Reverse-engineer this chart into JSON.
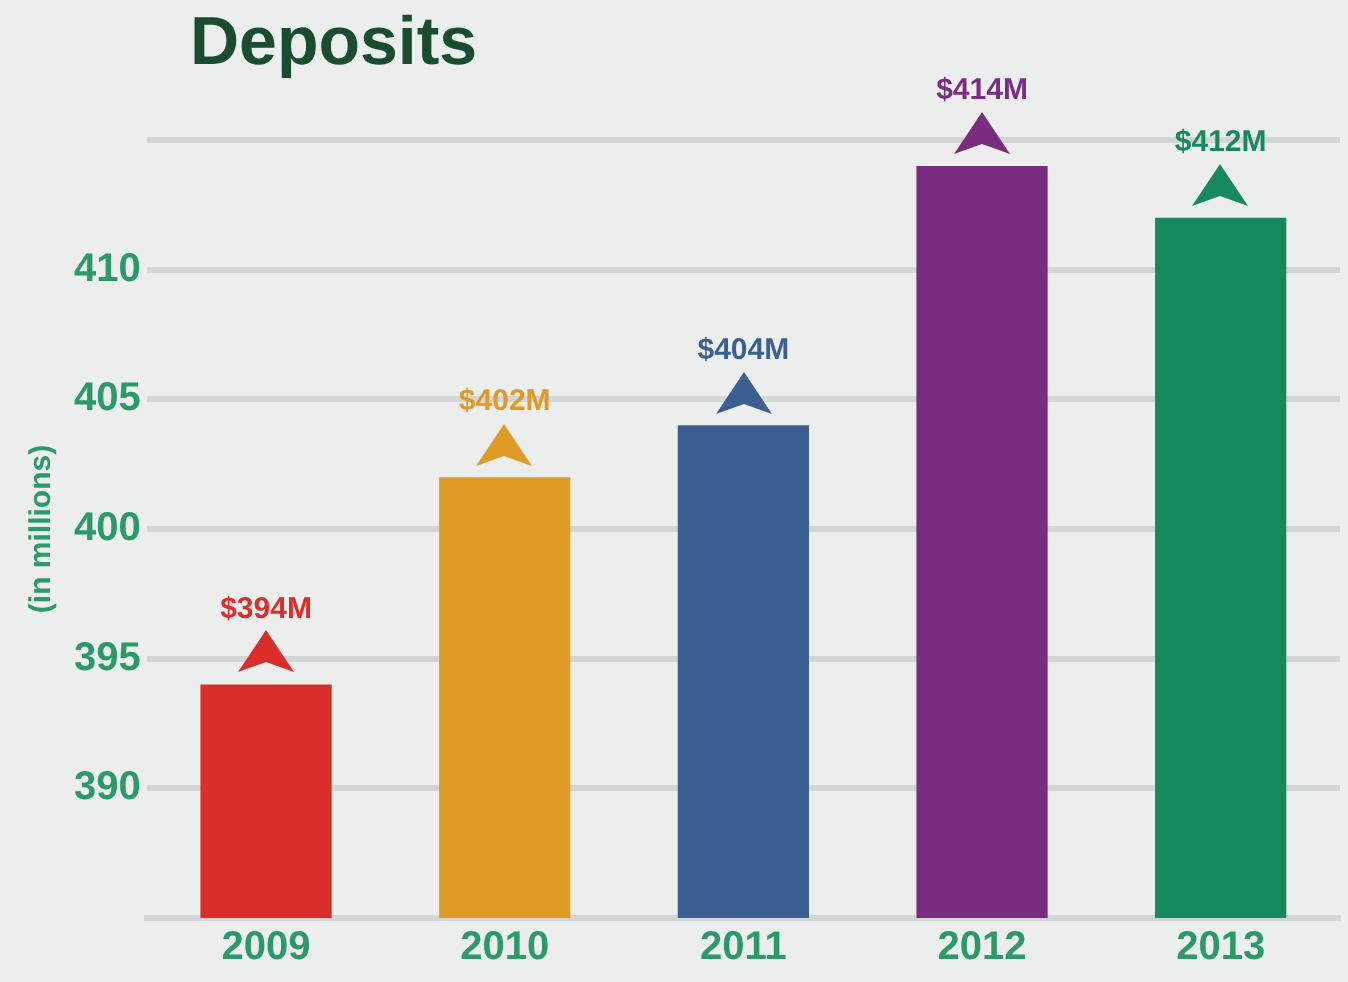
{
  "chart_data": {
    "type": "bar",
    "title": "Deposits",
    "ylabel": "(in millions)",
    "categories": [
      "2009",
      "2010",
      "2011",
      "2012",
      "2013"
    ],
    "values": [
      394,
      402,
      404,
      414,
      412
    ],
    "colors": [
      "#d92e2a",
      "#e09a26",
      "#3c5f92",
      "#7a2c80",
      "#168a5c"
    ],
    "value_labels": [
      "$394M",
      "$402M",
      "$404M",
      "$414M",
      "$412M"
    ],
    "ylim": [
      385,
      415
    ],
    "yticks": [
      390,
      395,
      400,
      405,
      410,
      {
        "value": 415,
        "label": null
      }
    ],
    "grid": "y",
    "legend": false
  }
}
